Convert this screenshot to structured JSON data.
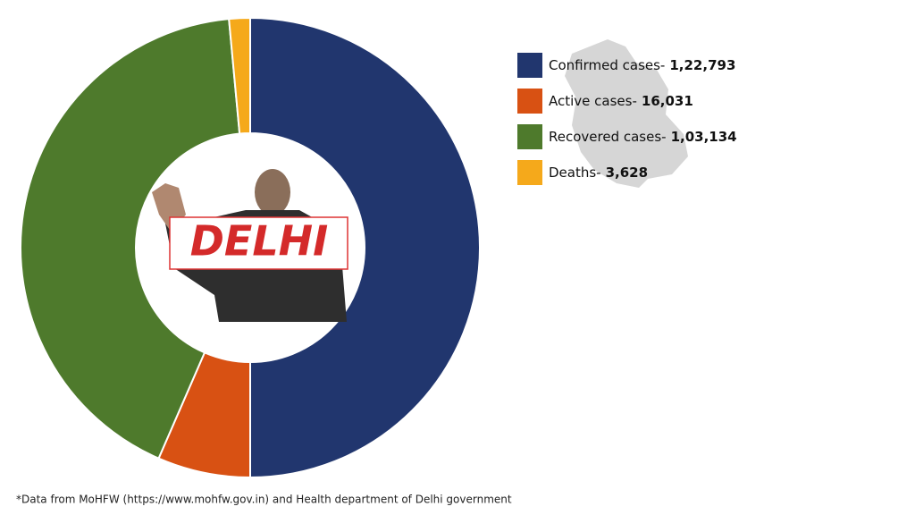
{
  "chart_data": {
    "type": "donut",
    "categories": [
      "Confirmed cases-",
      "Active cases-",
      "Recovered cases-",
      "Deaths-"
    ],
    "values": [
      122793,
      16031,
      103134,
      3628
    ],
    "value_labels": [
      "1,22,793",
      "16,031",
      "1,03,134",
      "3,628"
    ],
    "colors": [
      "#21366e",
      "#d85113",
      "#4e7a2c",
      "#f5a91b"
    ],
    "center_label": "DELHI",
    "footnote": "*Data from MoHFW (https://www.mohfw.gov.in) and Health department of Delhi government"
  }
}
